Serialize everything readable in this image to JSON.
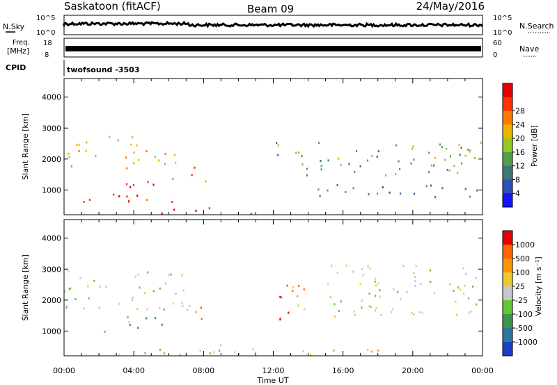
{
  "header": {
    "station": "Saskatoon (fitACF)",
    "beam": "Beam 09",
    "date": "24/May/2016"
  },
  "strips": {
    "nsky_label": "N.Sky",
    "nsky_ticks": [
      "10^5",
      "10^0"
    ],
    "nsearch_label": "N.Search",
    "nsearch_ticks": [
      "10^5",
      "10^0"
    ],
    "freq_label_1": "Freq.",
    "freq_label_2": "[MHz]",
    "freq_ticks": [
      "18",
      "8"
    ],
    "nave_label": "Nave",
    "nave_ticks": [
      "60",
      "0"
    ],
    "cpid_label": "CPID",
    "cpid_value": "twofsound -3503"
  },
  "chart_data": [
    {
      "type": "heatmap",
      "name": "power",
      "ylabel": "Slant Range [km]",
      "ylim": [
        200,
        4600
      ],
      "y_ticks": [
        1000,
        2000,
        3000,
        4000
      ],
      "x_ticks": [
        "00:00",
        "04:00",
        "08:00",
        "12:00",
        "16:00",
        "20:00",
        "00:00"
      ],
      "xlim_hours": [
        0,
        24
      ],
      "colorbar": {
        "label": "Power [dB]",
        "ticks": [
          "4",
          "8",
          "12",
          "16",
          "20",
          "24",
          "28"
        ],
        "colors": [
          "#1414ff",
          "#2d50b4",
          "#3c7878",
          "#50a050",
          "#96c81e",
          "#f0b400",
          "#ff7800",
          "#ff3200",
          "#e60000"
        ]
      },
      "bands": [
        {
          "t0": 0.0,
          "t1": 8.0,
          "r0": 1700,
          "r1": 2300,
          "level": 5
        },
        {
          "t0": 0.0,
          "t1": 4.5,
          "r0": 2450,
          "r1": 2900,
          "level": 5
        },
        {
          "t0": 3.5,
          "t1": 6.8,
          "r0": 1100,
          "r1": 1550,
          "level": 7
        },
        {
          "t0": 7.2,
          "t1": 8.3,
          "r0": 1200,
          "r1": 1800,
          "level": 6
        },
        {
          "t0": 0.5,
          "t1": 7.0,
          "r0": 500,
          "r1": 900,
          "level": 7
        },
        {
          "t0": 3.0,
          "t1": 8.5,
          "r0": 250,
          "r1": 450,
          "level": 8
        },
        {
          "t0": 10.0,
          "t1": 12.5,
          "r0": 250,
          "r1": 400,
          "level": 8
        },
        {
          "t0": 12.0,
          "t1": 24.0,
          "r0": 1500,
          "r1": 2600,
          "level": 3
        },
        {
          "t0": 14.0,
          "t1": 24.0,
          "r0": 700,
          "r1": 1200,
          "level": 2
        },
        {
          "t0": 21.0,
          "t1": 24.0,
          "r0": 2000,
          "r1": 2500,
          "level": 4
        }
      ]
    },
    {
      "type": "heatmap",
      "name": "velocity",
      "ylabel": "Slant Range [km]",
      "ylim": [
        200,
        4600
      ],
      "y_ticks": [
        1000,
        2000,
        3000,
        4000
      ],
      "x_ticks": [
        "00:00",
        "04:00",
        "08:00",
        "12:00",
        "16:00",
        "20:00",
        "00:00"
      ],
      "xlabel": "Time UT",
      "xlim_hours": [
        0,
        24
      ],
      "colorbar": {
        "label": "Velocity [m s⁻¹]",
        "ticks": [
          "1000",
          "500",
          "100",
          "25",
          "-25",
          "-100",
          "-500",
          "-1000"
        ],
        "colors": [
          "#1e3cc8",
          "#2878a0",
          "#3c9650",
          "#64c832",
          "#c8c8c8",
          "#f0c830",
          "#ff9600",
          "#ff6400",
          "#e60000"
        ]
      },
      "bands": [
        {
          "t0": 0.0,
          "t1": 8.0,
          "r0": 1700,
          "r1": 3000,
          "level": 4
        },
        {
          "t0": 2.0,
          "t1": 6.0,
          "r0": 1000,
          "r1": 1500,
          "level": 3
        },
        {
          "t0": 7.2,
          "t1": 8.3,
          "r0": 1200,
          "r1": 1800,
          "level": 7
        },
        {
          "t0": 12.0,
          "t1": 13.8,
          "r0": 1200,
          "r1": 2600,
          "level": 7
        },
        {
          "t0": 3.0,
          "t1": 12.0,
          "r0": 250,
          "r1": 600,
          "level": 4
        },
        {
          "t0": 8.0,
          "t1": 18.0,
          "r0": 250,
          "r1": 450,
          "level": 5
        },
        {
          "t0": 13.0,
          "t1": 24.0,
          "r0": 1500,
          "r1": 3200,
          "level": 4
        }
      ]
    }
  ]
}
